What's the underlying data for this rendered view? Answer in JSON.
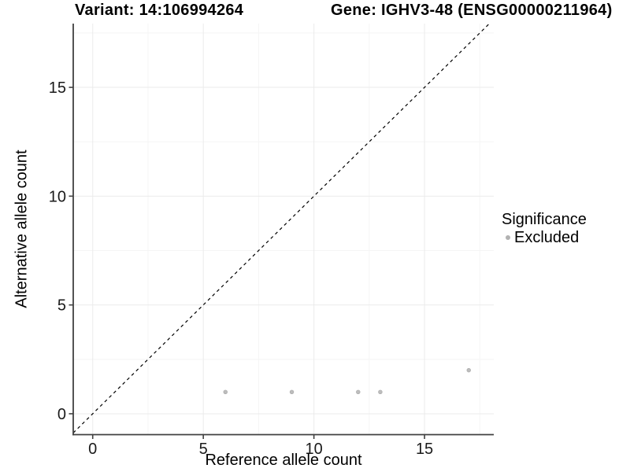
{
  "titles": {
    "variant": "Variant: 14:106994264",
    "gene": "Gene: IGHV3-48 (ENSG00000211964)"
  },
  "legend": {
    "title": "Significance",
    "items": [
      {
        "label": "Excluded",
        "color": "#b2b2b2"
      }
    ]
  },
  "chart_data": {
    "type": "scatter",
    "title_left": "Variant: 14:106994264",
    "title_right": "Gene: IGHV3-48 (ENSG00000211964)",
    "xlabel": "Reference allele count",
    "ylabel": "Alternative allele count",
    "xlim": [
      -0.88,
      18.13
    ],
    "ylim": [
      -0.96,
      17.93
    ],
    "x_ticks": [
      0,
      5,
      10,
      15
    ],
    "y_ticks": [
      0,
      5,
      10,
      15
    ],
    "x_minor_ticks": [
      2.5,
      7.5,
      12.5,
      17.5
    ],
    "y_minor_ticks": [
      2.5,
      7.5,
      12.5,
      17.5
    ],
    "grid": "major and minor gridlines on",
    "legend_position": "right",
    "series": [
      {
        "name": "Excluded",
        "color": "#bdbdbd",
        "points": [
          [
            6,
            1
          ],
          [
            9,
            1
          ],
          [
            12,
            1
          ],
          [
            13,
            1
          ],
          [
            17,
            2
          ]
        ]
      }
    ],
    "reference_line": {
      "equation": "y = x",
      "style": "dashed",
      "color": "#000000"
    }
  },
  "colors": {
    "background": "#ffffff",
    "axis_line": "#404040",
    "tick_label": "#1a1a1a",
    "grid_major": "#ebebeb",
    "grid_minor": "#f5f5f5",
    "point_fill": "#bdbdbd",
    "point_edge": "#a8a8a8",
    "dashed_line": "#000000"
  }
}
